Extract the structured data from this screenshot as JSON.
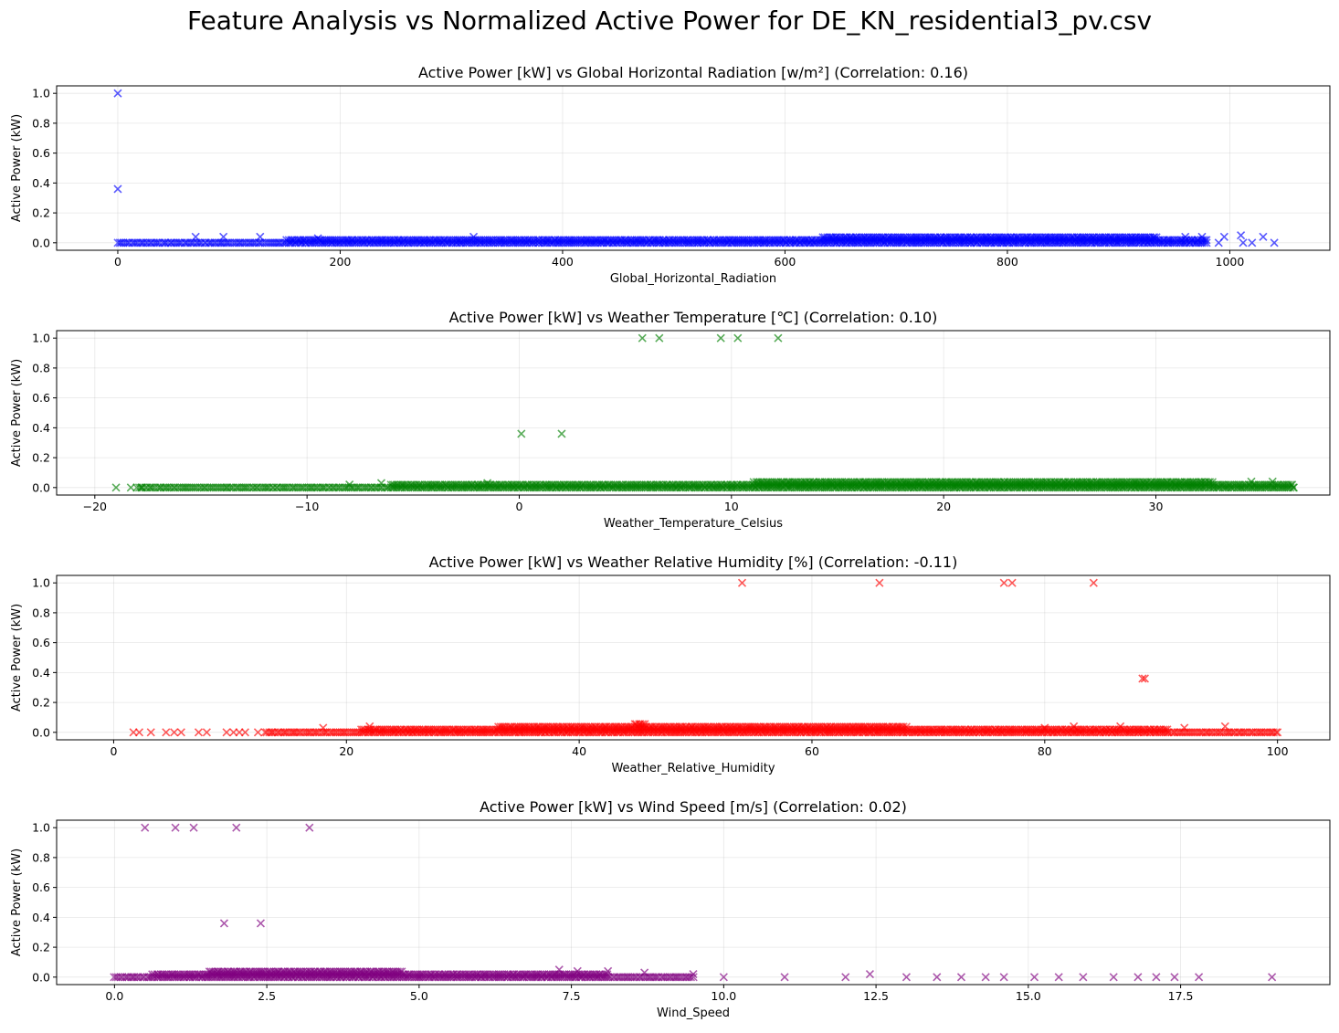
{
  "figure_title": "Feature Analysis vs Normalized Active Power for DE_KN_residential3_pv.csv",
  "chart_data": [
    {
      "type": "scatter",
      "title": "Active Power [kW] vs Global Horizontal Radiation [w/m²] (Correlation: 0.16)",
      "xlabel": "Global_Horizontal_Radiation",
      "ylabel": "Active Power (kW)",
      "color": "#0000ff",
      "marker": "x",
      "grid": true,
      "xlim": [
        -55,
        1090
      ],
      "ylim": [
        -0.05,
        1.05
      ],
      "xticks": [
        0,
        200,
        400,
        600,
        800,
        1000
      ],
      "xtick_labels": [
        "0",
        "200",
        "400",
        "600",
        "800",
        "1000"
      ],
      "yticks": [
        0.0,
        0.2,
        0.4,
        0.6,
        0.8,
        1.0
      ],
      "ytick_labels": [
        "0.0",
        "0.2",
        "0.4",
        "0.6",
        "0.8",
        "1.0"
      ],
      "band": {
        "x_start": 0,
        "x_end": 980,
        "y_low": 0.0,
        "y_high_start": 0.012,
        "y_high_peak": 0.045,
        "x_peak": 870,
        "y_high_end": 0.03
      },
      "points": [
        [
          0,
          1.0
        ],
        [
          0,
          0.36
        ],
        [
          70,
          0.04
        ],
        [
          95,
          0.04
        ],
        [
          128,
          0.04
        ],
        [
          180,
          0.03
        ],
        [
          320,
          0.04
        ],
        [
          960,
          0.04
        ],
        [
          975,
          0.04
        ],
        [
          990,
          0.0
        ],
        [
          995,
          0.04
        ],
        [
          1010,
          0.05
        ],
        [
          1012,
          0.0
        ],
        [
          1020,
          0.0
        ],
        [
          1030,
          0.04
        ],
        [
          1040,
          0.0
        ]
      ]
    },
    {
      "type": "scatter",
      "title": "Active Power [kW] vs Weather Temperature [℃] (Correlation: 0.10)",
      "xlabel": "Weather_Temperature_Celsius",
      "ylabel": "Active Power (kW)",
      "color": "#008000",
      "marker": "x",
      "grid": true,
      "xlim": [
        -21.8,
        38.2
      ],
      "ylim": [
        -0.05,
        1.05
      ],
      "xticks": [
        -20,
        -10,
        0,
        10,
        20,
        30
      ],
      "xtick_labels": [
        "−20",
        "−10",
        "0",
        "10",
        "20",
        "30"
      ],
      "yticks": [
        0.0,
        0.2,
        0.4,
        0.6,
        0.8,
        1.0
      ],
      "ytick_labels": [
        "0.0",
        "0.2",
        "0.4",
        "0.6",
        "0.8",
        "1.0"
      ],
      "band": {
        "x_start": -18,
        "x_end": 36.5,
        "y_low": 0.0,
        "y_high_start": 0.005,
        "y_high_peak": 0.05,
        "x_peak": 24,
        "y_high_end": 0.03
      },
      "points": [
        [
          5.8,
          1.0
        ],
        [
          6.6,
          1.0
        ],
        [
          9.5,
          1.0
        ],
        [
          10.3,
          1.0
        ],
        [
          12.2,
          1.0
        ],
        [
          0.1,
          0.36
        ],
        [
          2.0,
          0.36
        ],
        [
          -19,
          0.0
        ],
        [
          -18.3,
          0.0
        ],
        [
          -17.8,
          0.0
        ],
        [
          -8,
          0.02
        ],
        [
          -6.5,
          0.03
        ],
        [
          -1.5,
          0.03
        ],
        [
          34.5,
          0.04
        ],
        [
          35.5,
          0.04
        ],
        [
          36.5,
          0.0
        ]
      ]
    },
    {
      "type": "scatter",
      "title": "Active Power [kW] vs Weather Relative Humidity [%] (Correlation: -0.11)",
      "xlabel": "Weather_Relative_Humidity",
      "ylabel": "Active Power (kW)",
      "color": "#ff0000",
      "marker": "x",
      "grid": true,
      "xlim": [
        -4.9,
        104.5
      ],
      "ylim": [
        -0.05,
        1.05
      ],
      "xticks": [
        0,
        20,
        40,
        60,
        80,
        100
      ],
      "xtick_labels": [
        "0",
        "20",
        "40",
        "60",
        "80",
        "100"
      ],
      "yticks": [
        0.0,
        0.2,
        0.4,
        0.6,
        0.8,
        1.0
      ],
      "ytick_labels": [
        "0.0",
        "0.2",
        "0.4",
        "0.6",
        "0.8",
        "1.0"
      ],
      "band": {
        "x_start": 13,
        "x_end": 100,
        "y_low": 0.0,
        "y_high_start": 0.005,
        "y_high_peak": 0.055,
        "x_peak": 45,
        "y_high_end": 0.01
      },
      "points": [
        [
          54,
          1.0
        ],
        [
          65.8,
          1.0
        ],
        [
          76.5,
          1.0
        ],
        [
          77.2,
          1.0
        ],
        [
          84.2,
          1.0
        ],
        [
          88.4,
          0.36
        ],
        [
          88.6,
          0.36
        ],
        [
          1.7,
          0.0
        ],
        [
          2.2,
          0.0
        ],
        [
          3.2,
          0.0
        ],
        [
          4.5,
          0.0
        ],
        [
          5.2,
          0.0
        ],
        [
          5.8,
          0.0
        ],
        [
          7.3,
          0.0
        ],
        [
          8.0,
          0.0
        ],
        [
          9.7,
          0.0
        ],
        [
          10.3,
          0.0
        ],
        [
          10.8,
          0.0
        ],
        [
          11.3,
          0.0
        ],
        [
          12.4,
          0.0
        ],
        [
          18,
          0.03
        ],
        [
          22,
          0.04
        ],
        [
          80,
          0.03
        ],
        [
          82.5,
          0.04
        ],
        [
          86.5,
          0.04
        ],
        [
          92,
          0.03
        ],
        [
          95.5,
          0.04
        ],
        [
          100,
          0.0
        ]
      ]
    },
    {
      "type": "scatter",
      "title": "Active Power [kW] vs Wind Speed [m/s] (Correlation: 0.02)",
      "xlabel": "Wind_Speed",
      "ylabel": "Active Power (kW)",
      "color": "#800080",
      "marker": "x",
      "grid": true,
      "xlim": [
        -0.95,
        19.95
      ],
      "ylim": [
        -0.05,
        1.05
      ],
      "xticks": [
        0.0,
        2.5,
        5.0,
        7.5,
        10.0,
        12.5,
        15.0,
        17.5
      ],
      "xtick_labels": [
        "0.0",
        "2.5",
        "5.0",
        "7.5",
        "10.0",
        "12.5",
        "15.0",
        "17.5"
      ],
      "yticks": [
        0.0,
        0.2,
        0.4,
        0.6,
        0.8,
        1.0
      ],
      "ytick_labels": [
        "0.0",
        "0.2",
        "0.4",
        "0.6",
        "0.8",
        "1.0"
      ],
      "band": {
        "x_start": 0,
        "x_end": 9.5,
        "y_low": 0.0,
        "y_high_start": 0.005,
        "y_high_peak": 0.05,
        "x_peak": 2.2,
        "y_high_end": 0.01
      },
      "points": [
        [
          0.5,
          1.0
        ],
        [
          1.0,
          1.0
        ],
        [
          1.3,
          1.0
        ],
        [
          2.0,
          1.0
        ],
        [
          3.2,
          1.0
        ],
        [
          1.8,
          0.36
        ],
        [
          2.4,
          0.36
        ],
        [
          7.3,
          0.05
        ],
        [
          7.6,
          0.04
        ],
        [
          8.1,
          0.04
        ],
        [
          8.7,
          0.03
        ],
        [
          9.5,
          0.02
        ],
        [
          12.4,
          0.02
        ],
        [
          10.0,
          0.0
        ],
        [
          11.0,
          0.0
        ],
        [
          12.0,
          0.0
        ],
        [
          13.0,
          0.0
        ],
        [
          13.5,
          0.0
        ],
        [
          13.9,
          0.0
        ],
        [
          14.3,
          0.0
        ],
        [
          14.6,
          0.0
        ],
        [
          15.1,
          0.0
        ],
        [
          15.5,
          0.0
        ],
        [
          15.9,
          0.0
        ],
        [
          16.4,
          0.0
        ],
        [
          16.8,
          0.0
        ],
        [
          17.1,
          0.0
        ],
        [
          17.4,
          0.0
        ],
        [
          17.8,
          0.0
        ],
        [
          19.0,
          0.0
        ]
      ]
    }
  ]
}
